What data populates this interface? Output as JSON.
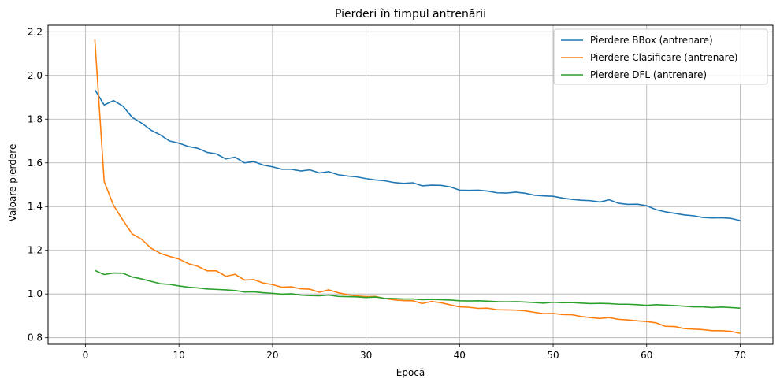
{
  "chart_data": {
    "type": "line",
    "title": "Pierderi în timpul antrenării",
    "xlabel": "Epocă",
    "ylabel": "Valoare pierdere",
    "xlim": [
      -4,
      73.5
    ],
    "ylim": [
      0.77,
      2.23
    ],
    "xticks": [
      0,
      10,
      20,
      30,
      40,
      50,
      60,
      70
    ],
    "yticks": [
      0.8,
      1.0,
      1.2,
      1.4,
      1.6,
      1.8,
      2.0,
      2.2
    ],
    "xtick_labels": [
      "0",
      "10",
      "20",
      "30",
      "40",
      "50",
      "60",
      "70"
    ],
    "ytick_labels": [
      "0.8",
      "1.0",
      "1.2",
      "1.4",
      "1.6",
      "1.8",
      "2.0",
      "2.2"
    ],
    "grid": true,
    "legend_position": "top-right",
    "series": [
      {
        "name": "Pierdere BBox (antrenare)",
        "color": "#1f77b4",
        "values": [
          1.935,
          1.865,
          1.885,
          1.86,
          1.808,
          1.782,
          1.75,
          1.728,
          1.7,
          1.69,
          1.675,
          1.667,
          1.648,
          1.641,
          1.618,
          1.626,
          1.6,
          1.606,
          1.59,
          1.582,
          1.571,
          1.571,
          1.563,
          1.568,
          1.554,
          1.56,
          1.546,
          1.54,
          1.536,
          1.528,
          1.522,
          1.518,
          1.51,
          1.506,
          1.509,
          1.495,
          1.498,
          1.497,
          1.49,
          1.475,
          1.474,
          1.475,
          1.471,
          1.463,
          1.462,
          1.466,
          1.461,
          1.452,
          1.449,
          1.447,
          1.439,
          1.433,
          1.429,
          1.427,
          1.421,
          1.431,
          1.415,
          1.41,
          1.411,
          1.404,
          1.386,
          1.376,
          1.369,
          1.362,
          1.358,
          1.35,
          1.348,
          1.349,
          1.346,
          1.336
        ]
      },
      {
        "name": "Pierdere Clasificare (antrenare)",
        "color": "#ff7f0e",
        "values": [
          2.165,
          1.515,
          1.405,
          1.338,
          1.275,
          1.25,
          1.21,
          1.186,
          1.172,
          1.16,
          1.139,
          1.127,
          1.106,
          1.106,
          1.081,
          1.09,
          1.064,
          1.066,
          1.05,
          1.043,
          1.031,
          1.033,
          1.024,
          1.022,
          1.008,
          1.019,
          1.006,
          0.997,
          0.991,
          0.988,
          0.989,
          0.979,
          0.973,
          0.97,
          0.969,
          0.956,
          0.966,
          0.96,
          0.95,
          0.941,
          0.939,
          0.934,
          0.935,
          0.928,
          0.927,
          0.926,
          0.923,
          0.916,
          0.91,
          0.911,
          0.906,
          0.905,
          0.897,
          0.892,
          0.888,
          0.892,
          0.884,
          0.881,
          0.877,
          0.874,
          0.868,
          0.852,
          0.851,
          0.842,
          0.839,
          0.837,
          0.832,
          0.832,
          0.829,
          0.82
        ]
      },
      {
        "name": "Pierdere DFL (antrenare)",
        "color": "#2ca02c",
        "values": [
          1.108,
          1.089,
          1.096,
          1.095,
          1.078,
          1.069,
          1.058,
          1.047,
          1.044,
          1.037,
          1.031,
          1.028,
          1.023,
          1.021,
          1.019,
          1.016,
          1.009,
          1.01,
          1.006,
          1.003,
          0.999,
          1.001,
          0.995,
          0.993,
          0.992,
          0.995,
          0.989,
          0.988,
          0.987,
          0.984,
          0.986,
          0.98,
          0.979,
          0.977,
          0.977,
          0.974,
          0.975,
          0.974,
          0.972,
          0.969,
          0.968,
          0.969,
          0.967,
          0.965,
          0.964,
          0.965,
          0.963,
          0.961,
          0.958,
          0.962,
          0.96,
          0.961,
          0.958,
          0.956,
          0.957,
          0.956,
          0.953,
          0.953,
          0.951,
          0.948,
          0.951,
          0.949,
          0.947,
          0.944,
          0.941,
          0.941,
          0.938,
          0.94,
          0.938,
          0.935
        ]
      }
    ]
  }
}
